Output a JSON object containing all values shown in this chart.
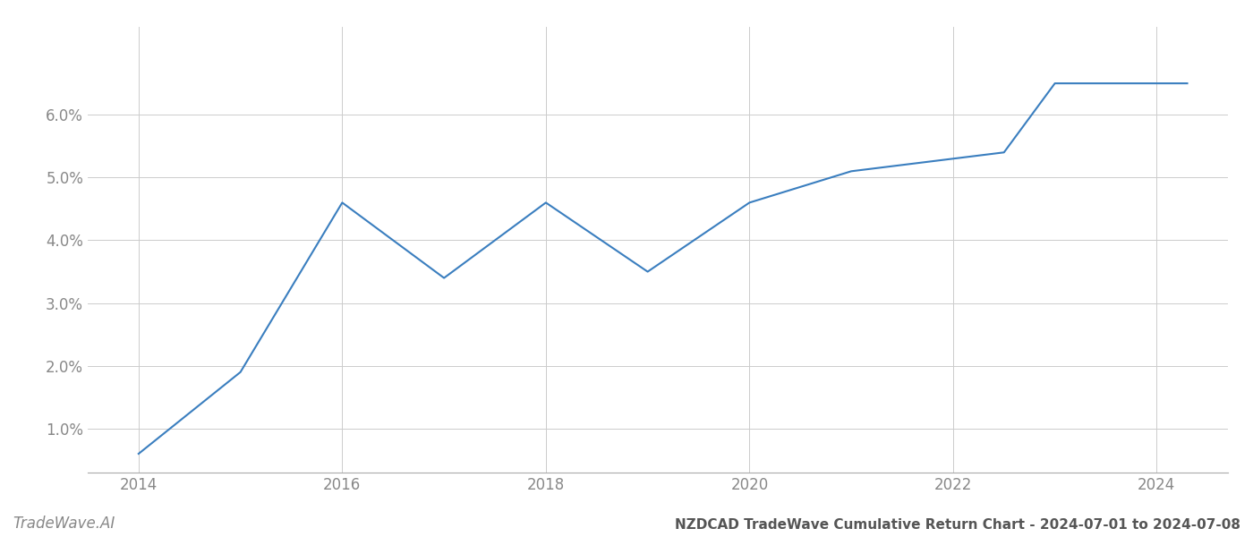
{
  "title": "NZDCAD TradeWave Cumulative Return Chart - 2024-07-01 to 2024-07-08",
  "watermark": "TradeWave.AI",
  "line_color": "#3a7ebf",
  "background_color": "#ffffff",
  "grid_color": "#cccccc",
  "x_values": [
    2014.0,
    2015.0,
    2016.0,
    2017.0,
    2018.0,
    2019.0,
    2020.0,
    2021.0,
    2021.5,
    2022.0,
    2022.5,
    2023.0,
    2023.5,
    2024.3
  ],
  "y_values": [
    0.006,
    0.019,
    0.046,
    0.034,
    0.046,
    0.035,
    0.046,
    0.051,
    0.052,
    0.053,
    0.054,
    0.065,
    0.065,
    0.065
  ],
  "xlim": [
    2013.5,
    2024.7
  ],
  "ylim": [
    0.003,
    0.074
  ],
  "xticks": [
    2014,
    2016,
    2018,
    2020,
    2022,
    2024
  ],
  "yticks": [
    0.01,
    0.02,
    0.03,
    0.04,
    0.05,
    0.06
  ],
  "ytick_labels": [
    "1.0%",
    "2.0%",
    "3.0%",
    "4.0%",
    "5.0%",
    "6.0%"
  ],
  "line_width": 1.5,
  "title_fontsize": 11,
  "tick_fontsize": 12,
  "watermark_fontsize": 12
}
